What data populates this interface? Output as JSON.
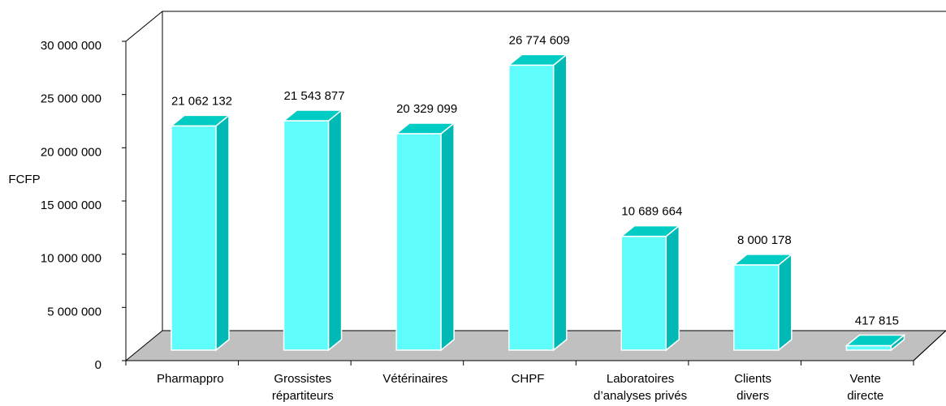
{
  "chart_data": {
    "type": "bar3d",
    "y_axis_label": "FCFP",
    "categories": [
      "Pharmappro",
      "Grossistes\nrépartiteurs",
      "Vétérinaires",
      "CHPF",
      "Laboratoires\nd’analyses privés",
      "Clients\ndivers",
      "Vente\ndirecte"
    ],
    "values": [
      21062132,
      21543877,
      20329099,
      26774609,
      10689664,
      8000178,
      417815
    ],
    "value_labels": [
      "21 062 132",
      "21 543 877",
      "20 329 099",
      "26 774 609",
      "10 689 664",
      "8 000 178",
      "417 815"
    ],
    "color": "#5ffcfc",
    "ylim": [
      0,
      30000000
    ],
    "yticks": [
      0,
      {
        "value": 5000000,
        "label": "5 000 000"
      },
      {
        "value": 10000000,
        "label": "10 000 000"
      },
      {
        "value": 15000000,
        "label": "15 000 000"
      },
      {
        "value": 20000000,
        "label": "20 000 000"
      },
      {
        "value": 25000000,
        "label": "25 000 000"
      },
      {
        "value": 30000000,
        "label": "30 000 000"
      }
    ]
  }
}
